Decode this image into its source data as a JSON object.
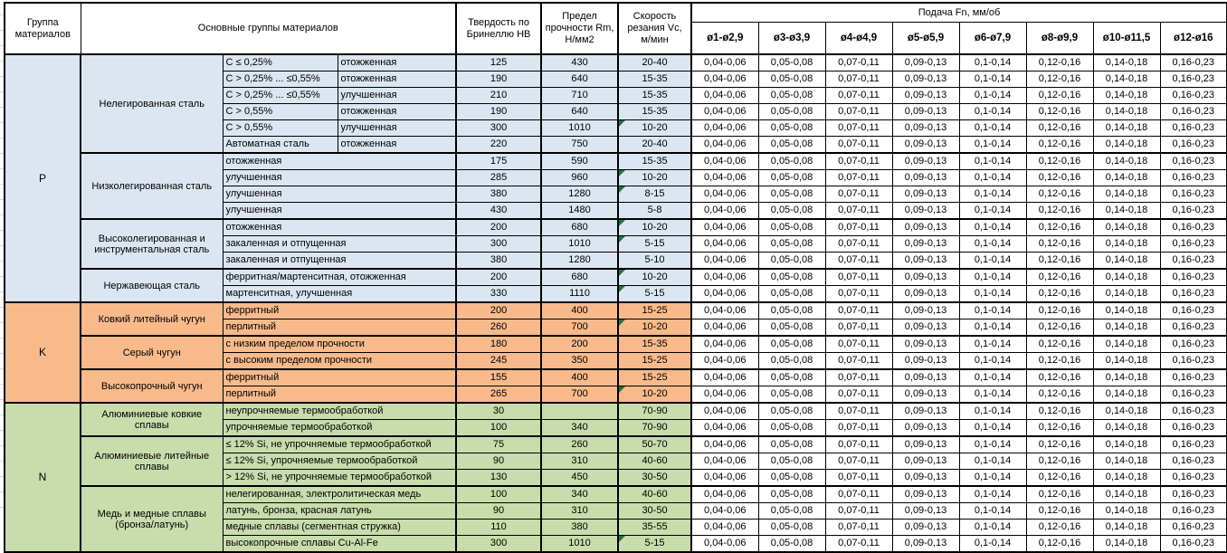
{
  "sheet": {
    "header": {
      "group_col": "Группа материалов",
      "main_col": "Основные группы материалов",
      "hb_col": "Твердость по Бринеллю HB",
      "rm_col": "Предел прочности Rm, Н/мм2",
      "vc_col": "Скорость резания Vc, м/мин",
      "feed_title": "Подача Fn, мм/об",
      "diameters": [
        "ø1-ø2,9",
        "ø3-ø3,9",
        "ø4-ø4,9",
        "ø5-ø5,9",
        "ø6-ø7,9",
        "ø8-ø9,9",
        "ø10-ø11,5",
        "ø12-ø16"
      ]
    },
    "feed_values": [
      "0,04-0,06",
      "0,05-0,08",
      "0,07-0,11",
      "0,09-0,13",
      "0,1-0,14",
      "0,12-0,16",
      "0,14-0,18",
      "0,16-0,23"
    ],
    "colors": {
      "P": "#DCE6F1",
      "K": "#F8BA8B",
      "N": "#C9DCAC",
      "marker": "#217346"
    },
    "groups": [
      {
        "code": "P",
        "subgroups": [
          {
            "name": "Нелегированная сталь",
            "rows": [
              {
                "c1": "C ≤ 0,25%",
                "c2": "отожженная",
                "hb": "125",
                "rm": "430",
                "vc": "20-40",
                "marker": false
              },
              {
                "c1": "C > 0,25% ... ≤0,55%",
                "c2": "отожженная",
                "hb": "190",
                "rm": "640",
                "vc": "15-35",
                "marker": false
              },
              {
                "c1": "C > 0,25% ... ≤0,55%",
                "c2": "улучшенная",
                "hb": "210",
                "rm": "710",
                "vc": "15-35",
                "marker": false
              },
              {
                "c1": "C > 0,55%",
                "c2": "отожженная",
                "hb": "190",
                "rm": "640",
                "vc": "15-35",
                "marker": false
              },
              {
                "c1": "C > 0,55%",
                "c2": "улучшенная",
                "hb": "300",
                "rm": "1010",
                "vc": "10-20",
                "marker": true
              },
              {
                "c1": "Автоматная сталь",
                "c2": "отожженная",
                "hb": "220",
                "rm": "750",
                "vc": "20-40",
                "marker": false
              }
            ]
          },
          {
            "name": "Низколегированная сталь",
            "rows": [
              {
                "desc": "отожженная",
                "hb": "175",
                "rm": "590",
                "vc": "15-35",
                "marker": false
              },
              {
                "desc": "улучшенная",
                "hb": "285",
                "rm": "960",
                "vc": "10-20",
                "marker": true
              },
              {
                "desc": "улучшенная",
                "hb": "380",
                "rm": "1280",
                "vc": "8-15",
                "marker": true
              },
              {
                "desc": "улучшенная",
                "hb": "430",
                "rm": "1480",
                "vc": "5-8",
                "marker": false
              }
            ]
          },
          {
            "name": "Высоколегированная и инструментальная сталь",
            "rows": [
              {
                "desc": "отожженная",
                "hb": "200",
                "rm": "680",
                "vc": "10-20",
                "marker": true
              },
              {
                "desc": "закаленная и отпущенная",
                "hb": "300",
                "rm": "1010",
                "vc": "5-15",
                "marker": true
              },
              {
                "desc": "закаленная и отпущенная",
                "hb": "380",
                "rm": "1280",
                "vc": "5-10",
                "marker": false
              }
            ]
          },
          {
            "name": "Нержавеющая сталь",
            "rows": [
              {
                "desc": "ферритная/мартенситная, отожженная",
                "hb": "200",
                "rm": "680",
                "vc": "10-20",
                "marker": true
              },
              {
                "desc": "мартенситная, улучшенная",
                "hb": "330",
                "rm": "1110",
                "vc": "5-15",
                "marker": true
              }
            ]
          }
        ]
      },
      {
        "code": "K",
        "subgroups": [
          {
            "name": "Ковкий литейный чугун",
            "rows": [
              {
                "desc": "ферритный",
                "hb": "200",
                "rm": "400",
                "vc": "15-25",
                "marker": false
              },
              {
                "desc": "перлитный",
                "hb": "260",
                "rm": "700",
                "vc": "10-20",
                "marker": true
              }
            ]
          },
          {
            "name": "Серый чугун",
            "rows": [
              {
                "desc": "с низким пределом прочности",
                "hb": "180",
                "rm": "200",
                "vc": "15-35",
                "marker": false
              },
              {
                "desc": "с высоким пределом прочности",
                "hb": "245",
                "rm": "350",
                "vc": "15-25",
                "marker": false
              }
            ]
          },
          {
            "name": "Высокопрочный чугун",
            "rows": [
              {
                "desc": "ферритный",
                "hb": "155",
                "rm": "400",
                "vc": "15-25",
                "marker": false
              },
              {
                "desc": "перлитный",
                "hb": "265",
                "rm": "700",
                "vc": "10-20",
                "marker": true
              }
            ]
          }
        ]
      },
      {
        "code": "N",
        "subgroups": [
          {
            "name": "Алюминиевые ковкие сплавы",
            "rows": [
              {
                "desc": "неупрочняемые термообработкой",
                "hb": "30",
                "rm": "",
                "vc": "70-90",
                "marker": false
              },
              {
                "desc": "упрочняемые термообработкой",
                "hb": "100",
                "rm": "340",
                "vc": "70-90",
                "marker": false
              }
            ]
          },
          {
            "name": "Алюминиевые литейные сплавы",
            "rows": [
              {
                "desc": "≤ 12% Si, не упрочняемые термообработкой",
                "hb": "75",
                "rm": "260",
                "vc": "50-70",
                "marker": false
              },
              {
                "desc": "≤ 12% Si, упрочняемые термообработкой",
                "hb": "90",
                "rm": "310",
                "vc": "40-60",
                "marker": false
              },
              {
                "desc": "> 12% Si, не упрочняемые термообработкой",
                "hb": "130",
                "rm": "450",
                "vc": "30-50",
                "marker": false
              }
            ]
          },
          {
            "name": "Медь и медные сплавы (бронза/латунь)",
            "rows": [
              {
                "desc": "нелегированная, электролитическая медь",
                "hb": "100",
                "rm": "340",
                "vc": "40-60",
                "marker": false
              },
              {
                "desc": "латунь, бронза, красная латунь",
                "hb": "90",
                "rm": "310",
                "vc": "30-50",
                "marker": false
              },
              {
                "desc": "медные сплавы (сегментная стружка)",
                "hb": "110",
                "rm": "380",
                "vc": "35-55",
                "marker": false
              },
              {
                "desc": "высокопрочные сплавы Cu-Al-Fe",
                "hb": "300",
                "rm": "1010",
                "vc": "5-15",
                "marker": true
              }
            ]
          }
        ]
      }
    ]
  }
}
